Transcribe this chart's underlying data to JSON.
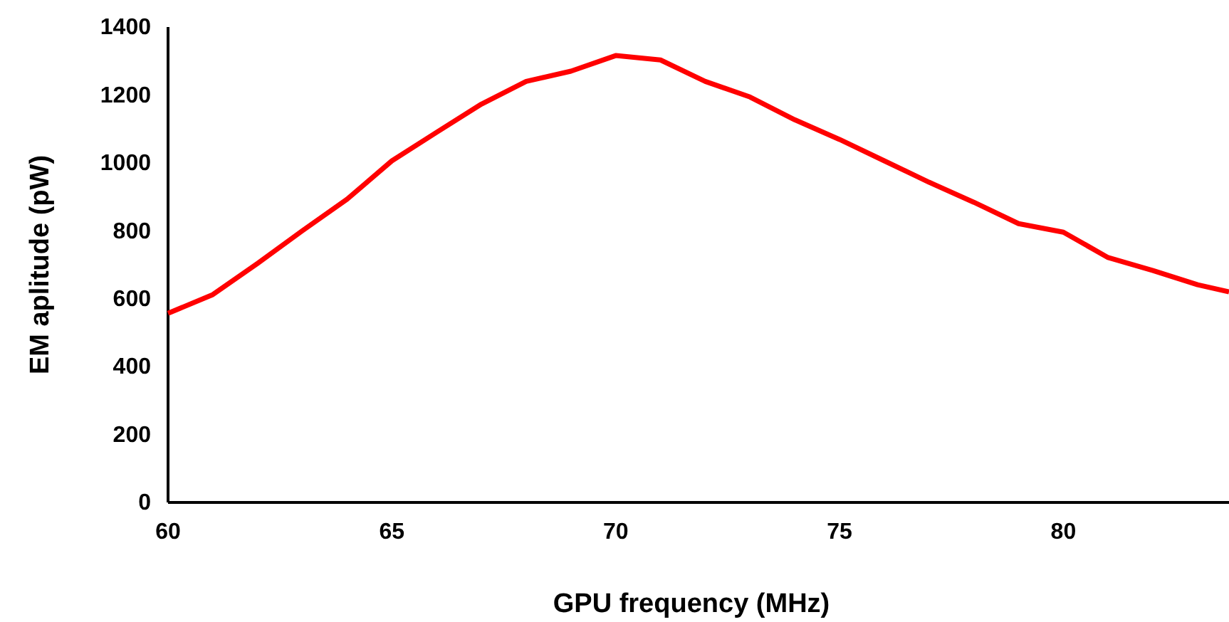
{
  "chart_data": {
    "type": "line",
    "xlabel": "GPU frequency (MHz)",
    "ylabel": "EM aplitude (pW)",
    "x": [
      60,
      61,
      62,
      63,
      64,
      65,
      66,
      67,
      68,
      69,
      70,
      71,
      72,
      73,
      74,
      75,
      76,
      77,
      78,
      79,
      80,
      81,
      82,
      83,
      83.7
    ],
    "series": [
      {
        "color": "#ff0000",
        "values": [
          557,
          612,
          704,
          800,
          893,
          1006,
          1090,
          1173,
          1240,
          1270,
          1316,
          1303,
          1240,
          1194,
          1127,
          1069,
          1006,
          943,
          884,
          821,
          796,
          721,
          683,
          641,
          620
        ]
      }
    ],
    "xlim": [
      60,
      83.7
    ],
    "xticks": [
      60,
      65,
      70,
      75,
      80
    ],
    "ylim": [
      0,
      1400
    ],
    "yticks": [
      0,
      200,
      400,
      600,
      800,
      1000,
      1200,
      1400
    ],
    "grid": false,
    "marker": "none",
    "line_style": "solid"
  }
}
